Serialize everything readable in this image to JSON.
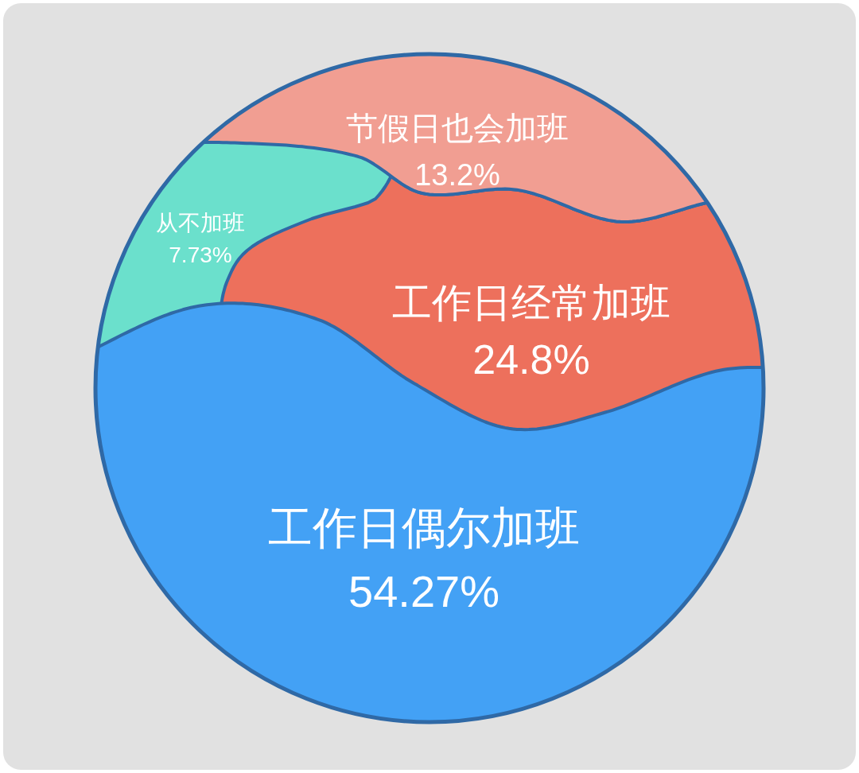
{
  "chart_data": {
    "type": "other",
    "categories": [
      "节假日也会加班",
      "从不加班",
      "工作日经常加班",
      "工作日偶尔加班"
    ],
    "values": [
      13.2,
      7.73,
      24.8,
      54.27
    ],
    "value_labels": [
      "13.2%",
      "7.73%",
      "24.8%",
      "54.27%"
    ],
    "colors": [
      "#f19e92",
      "#6be0cc",
      "#ed705c",
      "#43a1f5"
    ]
  }
}
